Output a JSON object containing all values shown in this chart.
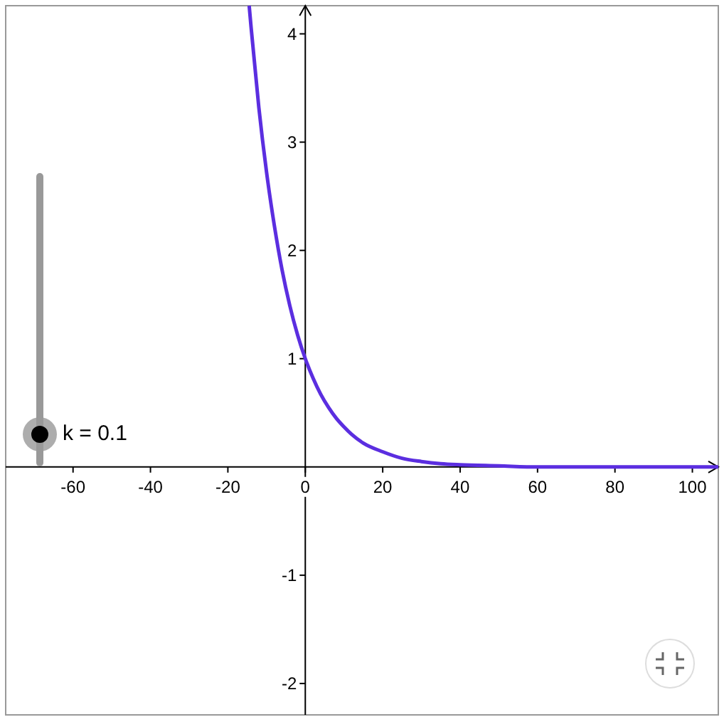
{
  "chart_data": {
    "type": "line",
    "x": [
      -14.5,
      -14,
      -12,
      -10,
      -8,
      -6,
      -4,
      -2,
      0,
      2,
      4,
      6,
      8,
      10,
      12,
      15,
      20,
      25,
      30,
      35,
      40,
      50,
      60,
      80,
      106.7
    ],
    "series": [
      {
        "color": "#5b2ee0",
        "values": [
          4.26,
          4.06,
          3.32,
          2.72,
          2.23,
          1.82,
          1.49,
          1.22,
          1,
          0.82,
          0.67,
          0.55,
          0.45,
          0.37,
          0.3,
          0.22,
          0.14,
          0.08,
          0.05,
          0.03,
          0.02,
          0.01,
          0,
          0,
          0
        ]
      }
    ],
    "xlim": [
      -77.4,
      106.7
    ],
    "ylim": [
      -2.29,
      4.26
    ],
    "xticks": [
      -60,
      -40,
      -20,
      0,
      20,
      40,
      60,
      80,
      100
    ],
    "yticks": [
      -2,
      -1,
      1,
      2,
      3,
      4
    ],
    "grid": false,
    "marker": "none",
    "line_style": "solid",
    "annotations": [
      "k = 0.1"
    ]
  }
}
